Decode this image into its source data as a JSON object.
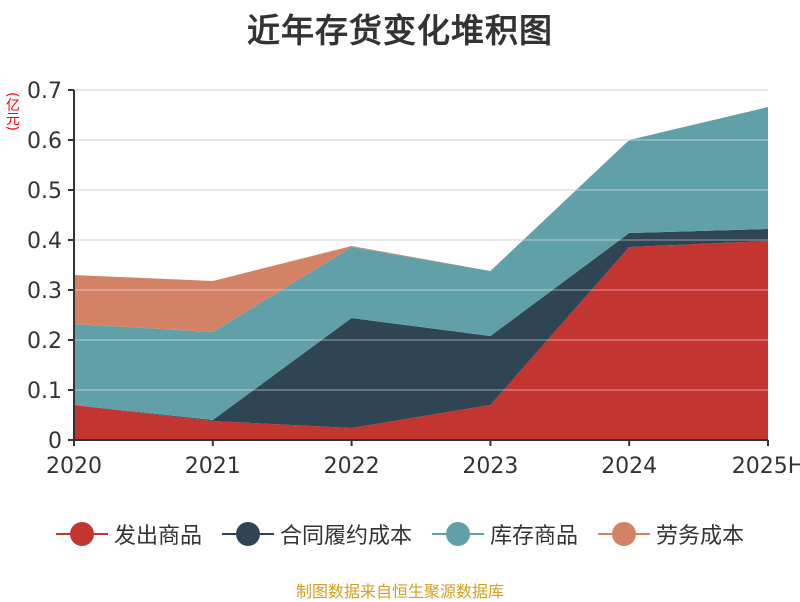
{
  "title": "近年存货变化堆积图",
  "unit_label": "(亿元)",
  "source": "制图数据来自恒生聚源数据库",
  "colors": {
    "发出商品": "#c23531",
    "合同履约成本": "#2f4554",
    "库存商品": "#61a0a8",
    "劳务成本": "#d48265",
    "axis": "#333333",
    "grid": "#e0e0e0"
  },
  "legend": [
    {
      "label": "发出商品",
      "color": "#c23531"
    },
    {
      "label": "合同履约成本",
      "color": "#2f4554"
    },
    {
      "label": "库存商品",
      "color": "#61a0a8"
    },
    {
      "label": "劳务成本",
      "color": "#d48265"
    }
  ],
  "chart_data": {
    "type": "area",
    "stacked": true,
    "title": "近年存货变化堆积图",
    "xlabel": "",
    "ylabel": "(亿元)",
    "categories": [
      "2020",
      "2021",
      "2022",
      "2023",
      "2024",
      "2025H"
    ],
    "series": [
      {
        "name": "发出商品",
        "values": [
          0.07,
          0.038,
          0.024,
          0.07,
          0.386,
          0.398
        ]
      },
      {
        "name": "合同履约成本",
        "values": [
          0.0,
          0.002,
          0.22,
          0.138,
          0.028,
          0.024
        ]
      },
      {
        "name": "库存商品",
        "values": [
          0.162,
          0.176,
          0.142,
          0.13,
          0.186,
          0.244
        ]
      },
      {
        "name": "劳务成本",
        "values": [
          0.098,
          0.102,
          0.002,
          0.0,
          0.0,
          0.0
        ]
      }
    ],
    "ylim": [
      0,
      0.7
    ],
    "yticks": [
      "0",
      "0.1",
      "0.2",
      "0.3",
      "0.4",
      "0.5",
      "0.6",
      "0.7"
    ],
    "grid": true,
    "legend_position": "bottom"
  }
}
